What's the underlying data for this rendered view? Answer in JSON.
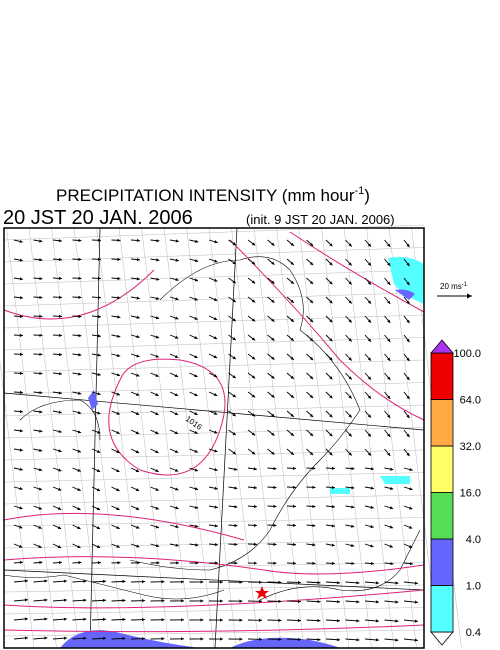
{
  "title": {
    "text": "PRECIPITATION INTENSITY (mm hour",
    "superscript": "-1",
    "close": ")"
  },
  "valid_time": "20 JST 20 JAN. 2006",
  "init_time": "(init. 9 JST 20 JAN. 2006)",
  "vector_scale": {
    "text": "20 ms",
    "superscript": "-1"
  },
  "isobar_label": "1016",
  "colorbar": {
    "labels": [
      "0.4",
      "1.0",
      "4.0",
      "16.0",
      "32.0",
      "64.0",
      "100.0"
    ],
    "colors": [
      "#ffffff",
      "#55ffff",
      "#6666ff",
      "#55dd55",
      "#ffff66",
      "#ffaa44",
      "#ee0000",
      "#aa33ee"
    ]
  }
}
